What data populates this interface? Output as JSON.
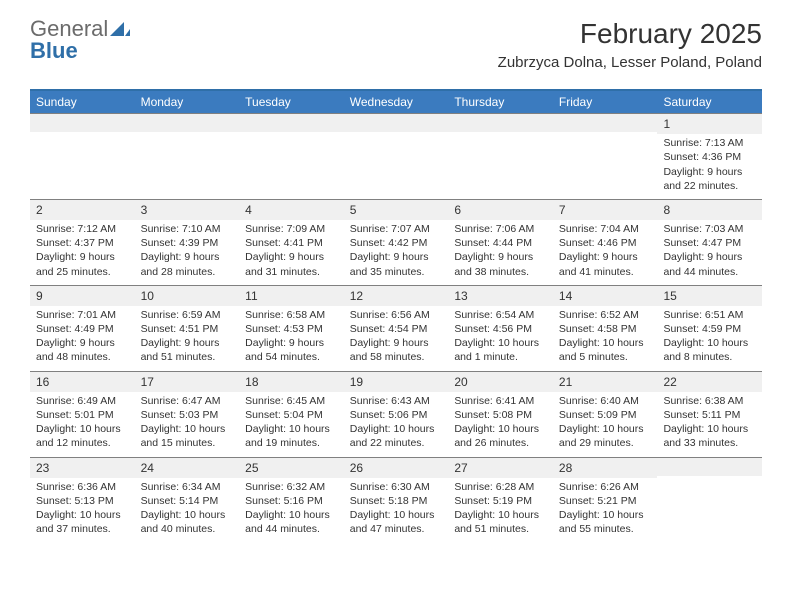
{
  "logo": {
    "text1": "General",
    "text2": "Blue"
  },
  "title": "February 2025",
  "location": "Zubrzyca Dolna, Lesser Poland, Poland",
  "colors": {
    "header_bg": "#3b7bbf",
    "header_border": "#2f6fa8",
    "row_border": "#808080",
    "daynum_bg": "#f0f0f0",
    "text": "#333333",
    "logo_gray": "#6b6b6b",
    "logo_blue": "#2f6fa8"
  },
  "day_headers": [
    "Sunday",
    "Monday",
    "Tuesday",
    "Wednesday",
    "Thursday",
    "Friday",
    "Saturday"
  ],
  "weeks": [
    [
      {
        "n": "",
        "sunrise": "",
        "sunset": "",
        "daylight": ""
      },
      {
        "n": "",
        "sunrise": "",
        "sunset": "",
        "daylight": ""
      },
      {
        "n": "",
        "sunrise": "",
        "sunset": "",
        "daylight": ""
      },
      {
        "n": "",
        "sunrise": "",
        "sunset": "",
        "daylight": ""
      },
      {
        "n": "",
        "sunrise": "",
        "sunset": "",
        "daylight": ""
      },
      {
        "n": "",
        "sunrise": "",
        "sunset": "",
        "daylight": ""
      },
      {
        "n": "1",
        "sunrise": "Sunrise: 7:13 AM",
        "sunset": "Sunset: 4:36 PM",
        "daylight": "Daylight: 9 hours and 22 minutes."
      }
    ],
    [
      {
        "n": "2",
        "sunrise": "Sunrise: 7:12 AM",
        "sunset": "Sunset: 4:37 PM",
        "daylight": "Daylight: 9 hours and 25 minutes."
      },
      {
        "n": "3",
        "sunrise": "Sunrise: 7:10 AM",
        "sunset": "Sunset: 4:39 PM",
        "daylight": "Daylight: 9 hours and 28 minutes."
      },
      {
        "n": "4",
        "sunrise": "Sunrise: 7:09 AM",
        "sunset": "Sunset: 4:41 PM",
        "daylight": "Daylight: 9 hours and 31 minutes."
      },
      {
        "n": "5",
        "sunrise": "Sunrise: 7:07 AM",
        "sunset": "Sunset: 4:42 PM",
        "daylight": "Daylight: 9 hours and 35 minutes."
      },
      {
        "n": "6",
        "sunrise": "Sunrise: 7:06 AM",
        "sunset": "Sunset: 4:44 PM",
        "daylight": "Daylight: 9 hours and 38 minutes."
      },
      {
        "n": "7",
        "sunrise": "Sunrise: 7:04 AM",
        "sunset": "Sunset: 4:46 PM",
        "daylight": "Daylight: 9 hours and 41 minutes."
      },
      {
        "n": "8",
        "sunrise": "Sunrise: 7:03 AM",
        "sunset": "Sunset: 4:47 PM",
        "daylight": "Daylight: 9 hours and 44 minutes."
      }
    ],
    [
      {
        "n": "9",
        "sunrise": "Sunrise: 7:01 AM",
        "sunset": "Sunset: 4:49 PM",
        "daylight": "Daylight: 9 hours and 48 minutes."
      },
      {
        "n": "10",
        "sunrise": "Sunrise: 6:59 AM",
        "sunset": "Sunset: 4:51 PM",
        "daylight": "Daylight: 9 hours and 51 minutes."
      },
      {
        "n": "11",
        "sunrise": "Sunrise: 6:58 AM",
        "sunset": "Sunset: 4:53 PM",
        "daylight": "Daylight: 9 hours and 54 minutes."
      },
      {
        "n": "12",
        "sunrise": "Sunrise: 6:56 AM",
        "sunset": "Sunset: 4:54 PM",
        "daylight": "Daylight: 9 hours and 58 minutes."
      },
      {
        "n": "13",
        "sunrise": "Sunrise: 6:54 AM",
        "sunset": "Sunset: 4:56 PM",
        "daylight": "Daylight: 10 hours and 1 minute."
      },
      {
        "n": "14",
        "sunrise": "Sunrise: 6:52 AM",
        "sunset": "Sunset: 4:58 PM",
        "daylight": "Daylight: 10 hours and 5 minutes."
      },
      {
        "n": "15",
        "sunrise": "Sunrise: 6:51 AM",
        "sunset": "Sunset: 4:59 PM",
        "daylight": "Daylight: 10 hours and 8 minutes."
      }
    ],
    [
      {
        "n": "16",
        "sunrise": "Sunrise: 6:49 AM",
        "sunset": "Sunset: 5:01 PM",
        "daylight": "Daylight: 10 hours and 12 minutes."
      },
      {
        "n": "17",
        "sunrise": "Sunrise: 6:47 AM",
        "sunset": "Sunset: 5:03 PM",
        "daylight": "Daylight: 10 hours and 15 minutes."
      },
      {
        "n": "18",
        "sunrise": "Sunrise: 6:45 AM",
        "sunset": "Sunset: 5:04 PM",
        "daylight": "Daylight: 10 hours and 19 minutes."
      },
      {
        "n": "19",
        "sunrise": "Sunrise: 6:43 AM",
        "sunset": "Sunset: 5:06 PM",
        "daylight": "Daylight: 10 hours and 22 minutes."
      },
      {
        "n": "20",
        "sunrise": "Sunrise: 6:41 AM",
        "sunset": "Sunset: 5:08 PM",
        "daylight": "Daylight: 10 hours and 26 minutes."
      },
      {
        "n": "21",
        "sunrise": "Sunrise: 6:40 AM",
        "sunset": "Sunset: 5:09 PM",
        "daylight": "Daylight: 10 hours and 29 minutes."
      },
      {
        "n": "22",
        "sunrise": "Sunrise: 6:38 AM",
        "sunset": "Sunset: 5:11 PM",
        "daylight": "Daylight: 10 hours and 33 minutes."
      }
    ],
    [
      {
        "n": "23",
        "sunrise": "Sunrise: 6:36 AM",
        "sunset": "Sunset: 5:13 PM",
        "daylight": "Daylight: 10 hours and 37 minutes."
      },
      {
        "n": "24",
        "sunrise": "Sunrise: 6:34 AM",
        "sunset": "Sunset: 5:14 PM",
        "daylight": "Daylight: 10 hours and 40 minutes."
      },
      {
        "n": "25",
        "sunrise": "Sunrise: 6:32 AM",
        "sunset": "Sunset: 5:16 PM",
        "daylight": "Daylight: 10 hours and 44 minutes."
      },
      {
        "n": "26",
        "sunrise": "Sunrise: 6:30 AM",
        "sunset": "Sunset: 5:18 PM",
        "daylight": "Daylight: 10 hours and 47 minutes."
      },
      {
        "n": "27",
        "sunrise": "Sunrise: 6:28 AM",
        "sunset": "Sunset: 5:19 PM",
        "daylight": "Daylight: 10 hours and 51 minutes."
      },
      {
        "n": "28",
        "sunrise": "Sunrise: 6:26 AM",
        "sunset": "Sunset: 5:21 PM",
        "daylight": "Daylight: 10 hours and 55 minutes."
      },
      {
        "n": "",
        "sunrise": "",
        "sunset": "",
        "daylight": ""
      }
    ]
  ]
}
